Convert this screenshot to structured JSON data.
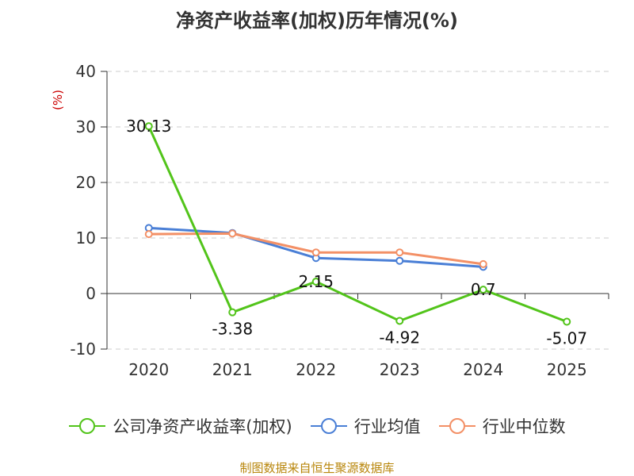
{
  "chart_data": {
    "type": "line",
    "title": "净资产收益率(加权)历年情况(%)",
    "ylabel": "(%)",
    "categories": [
      "2020",
      "2021",
      "2022",
      "2023",
      "2024",
      "2025"
    ],
    "ylim": [
      -10,
      40
    ],
    "yticks": [
      -10,
      0,
      10,
      20,
      30,
      40
    ],
    "grid": true,
    "legend": "bottom",
    "series": [
      {
        "name": "公司净资产收益率(加权)",
        "color": "#52c41a",
        "values": [
          30.13,
          -3.38,
          2.15,
          -4.92,
          0.7,
          -5.07
        ],
        "labels": [
          "30.13",
          "-3.38",
          "2.15",
          "-4.92",
          "0.7",
          "-5.07"
        ]
      },
      {
        "name": "行业均值",
        "color": "#4a7fd6",
        "values": [
          11.8,
          10.9,
          6.4,
          5.9,
          4.8,
          null
        ]
      },
      {
        "name": "行业中位数",
        "color": "#f39066",
        "values": [
          10.7,
          10.8,
          7.4,
          7.4,
          5.3,
          null
        ]
      }
    ]
  },
  "source": "制图数据来自恒生聚源数据库"
}
